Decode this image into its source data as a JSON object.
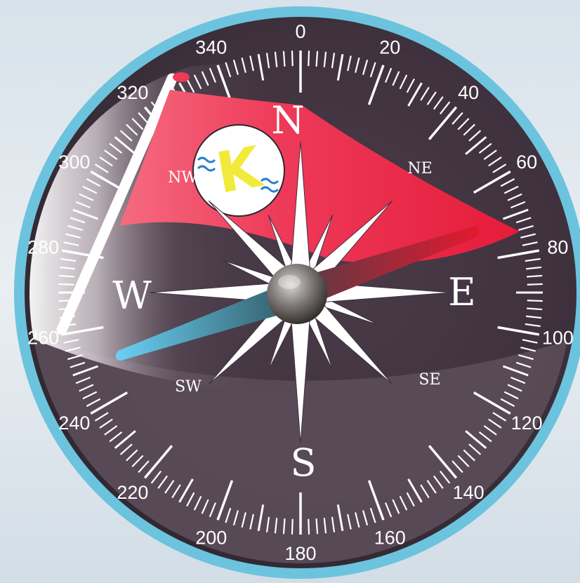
{
  "compass": {
    "heading_degrees": 64,
    "degree_labels": [
      "0",
      "20",
      "40",
      "60",
      "80",
      "100",
      "120",
      "140",
      "160",
      "180",
      "200",
      "220",
      "240",
      "260",
      "280",
      "300",
      "320",
      "340"
    ],
    "cardinals": {
      "north": "N",
      "east": "E",
      "south": "S",
      "west": "W"
    },
    "intercardinals": {
      "northeast": "NE",
      "southeast": "SE",
      "southwest": "SW",
      "northwest": "NW"
    },
    "logo_letter": "K",
    "colors": {
      "bezel": "#6cc3dd",
      "face": "#4f424e",
      "flag": "#ef2f4f",
      "needle_north": "#e3192e",
      "needle_south": "#6ad0f5",
      "hub": "#8e8a87",
      "logo_letter": "#f2ea3a",
      "logo_waves": "#2a7ecb"
    },
    "icons": {
      "logo": "k-waves-logo-icon",
      "flag": "pennant-flag-icon",
      "needle": "compass-needle-icon"
    }
  }
}
